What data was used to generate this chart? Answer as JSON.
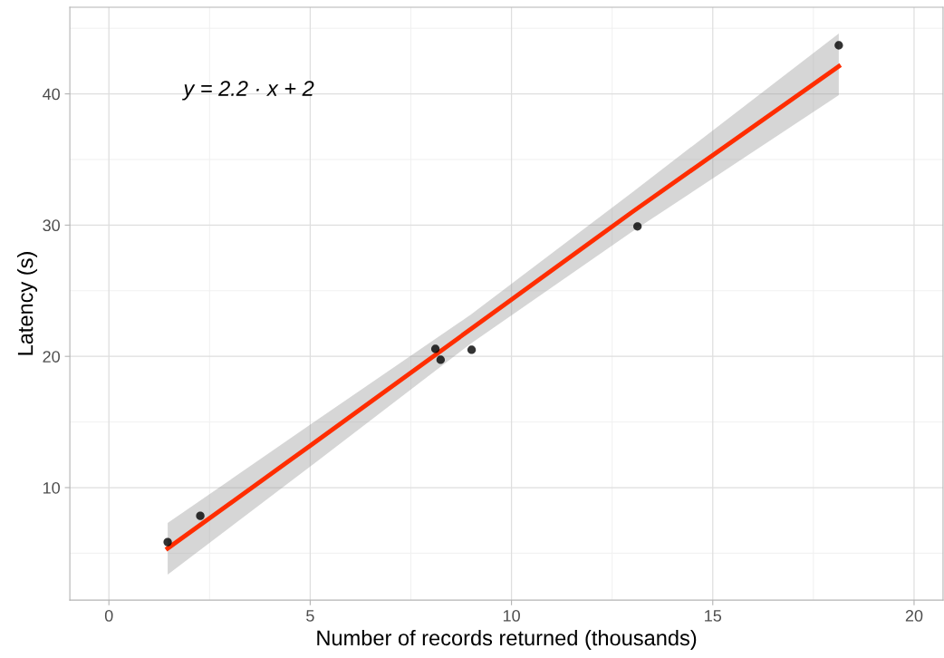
{
  "chart_data": {
    "type": "scatter",
    "xlabel": "Number of records returned (thousands)",
    "ylabel": "Latency (s)",
    "series": [
      {
        "marker": "circle",
        "color": "#000000",
        "x": [
          1.46,
          2.27,
          8.11,
          8.24,
          9.01,
          13.13,
          18.13
        ],
        "values": [
          5.85,
          7.85,
          20.57,
          19.74,
          20.5,
          29.9,
          43.7
        ]
      },
      {
        "type": "line",
        "color": "#ff2d00",
        "x": [
          1.46,
          5,
          9,
          13,
          18.13
        ],
        "values": [
          5.37,
          13.2,
          22.1,
          31.0,
          42.1
        ],
        "lower": [
          3.37,
          11.6,
          21.0,
          29.5,
          39.9
        ],
        "upper": [
          7.3,
          14.8,
          23.2,
          32.5,
          44.6
        ]
      }
    ],
    "xlim": [
      -0.97,
      20.72
    ],
    "ylim": [
      1.43,
      46.6
    ],
    "xticks": [
      0,
      5,
      10,
      15,
      20
    ],
    "yticks": [
      10,
      20,
      30,
      40
    ],
    "grid": true,
    "annotations": [
      "y = 2.2 · x + 2"
    ]
  }
}
